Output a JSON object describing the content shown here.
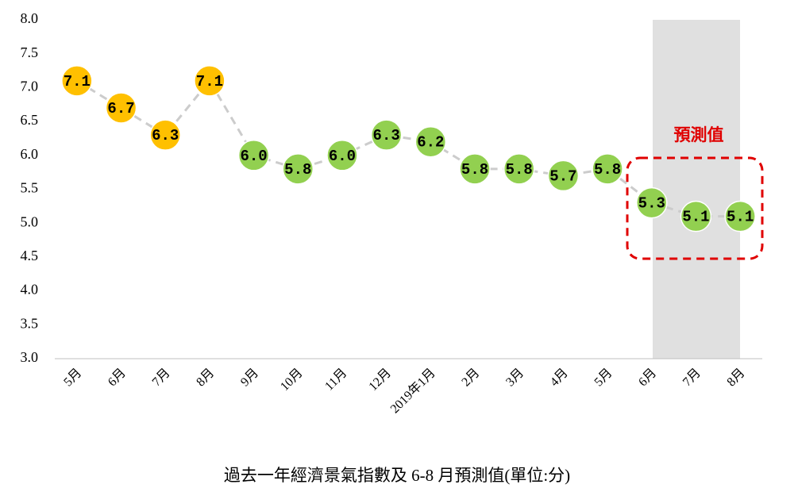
{
  "chart_data": {
    "type": "line",
    "title": "過去一年經濟景氣指數及 6-8 月預測值(單位:分)",
    "annotation": "預測值",
    "categories": [
      "5月",
      "6月",
      "7月",
      "8月",
      "9月",
      "10月",
      "11月",
      "12月",
      "2019年1月",
      "2月",
      "3月",
      "4月",
      "5月",
      "6月",
      "7月",
      "8月"
    ],
    "values": [
      7.1,
      6.7,
      6.3,
      7.1,
      6.0,
      5.8,
      6.0,
      6.3,
      6.2,
      5.8,
      5.8,
      5.7,
      5.8,
      5.3,
      5.1,
      5.1
    ],
    "value_labels": [
      "7.1",
      "6.7",
      "6.3",
      "7.1",
      "6.0",
      "5.8",
      "6.0",
      "6.3",
      "6.2",
      "5.8",
      "5.8",
      "5.7",
      "5.8",
      "5.3",
      "5.1",
      "5.1"
    ],
    "colors": [
      "#ffc000",
      "#ffc000",
      "#ffc000",
      "#ffc000",
      "#92d050",
      "#92d050",
      "#92d050",
      "#92d050",
      "#92d050",
      "#92d050",
      "#92d050",
      "#92d050",
      "#92d050",
      "#92d050",
      "#92d050",
      "#92d050"
    ],
    "line_color": "#cccccc",
    "ylim": [
      3,
      8
    ],
    "yticks": [
      {
        "value": 3,
        "label": "3.0"
      },
      {
        "value": 3.5,
        "label": "3.5"
      },
      {
        "value": 4,
        "label": "4.0"
      },
      {
        "value": 4.5,
        "label": "4.5"
      },
      {
        "value": 5,
        "label": "5.0"
      },
      {
        "value": 5.5,
        "label": "5.5"
      },
      {
        "value": 6,
        "label": "6.0"
      },
      {
        "value": 6.5,
        "label": "6.5"
      },
      {
        "value": 7,
        "label": "7.0"
      },
      {
        "value": 7.5,
        "label": "7.5"
      },
      {
        "value": 8,
        "label": "8.0"
      }
    ]
  }
}
